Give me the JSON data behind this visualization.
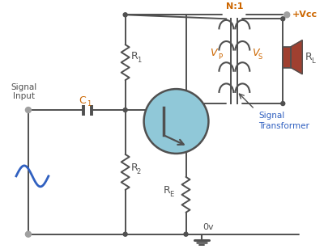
{
  "bg_color": "#ffffff",
  "line_color": "#505050",
  "blue_color": "#3060c0",
  "orange_color": "#cc6600",
  "transistor_fill": "#90c8d8",
  "vcc_text": "+Vcc",
  "vp_text": "V",
  "vp_sub": "P",
  "vs_text": "V",
  "vs_sub": "S",
  "r1_text": "R",
  "r1_sub": "1",
  "r2_text": "R",
  "r2_sub": "2",
  "re_text": "R",
  "re_sub": "E",
  "rl_text": "R",
  "rl_sub": "L",
  "c1_text": "C",
  "c1_sub": "1",
  "n1_text": "N:1",
  "signal_line1": "Signal",
  "signal_line2": "Input",
  "transformer_line1": "Signal",
  "transformer_line2": "Transformer",
  "ov_text": "0v",
  "speaker_color": "#a04030",
  "dot_color": "#606060",
  "gray_dot_color": "#a0a0a0"
}
